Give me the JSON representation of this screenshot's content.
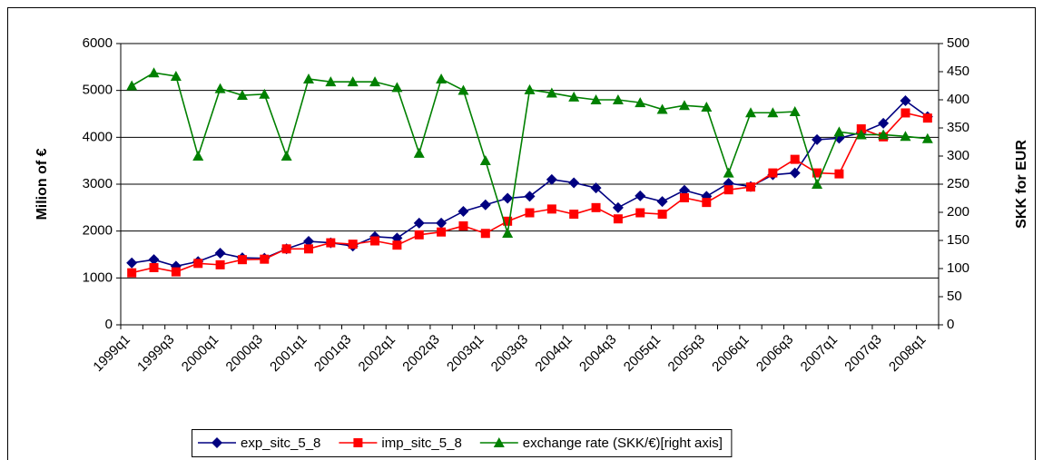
{
  "chart_data": {
    "type": "line",
    "y_label": "Milion of €",
    "y2_label": "SKK for EUR",
    "categories": [
      "1999q1",
      null,
      "1999q3",
      null,
      "2000q1",
      null,
      "2000q3",
      null,
      "2001q1",
      null,
      "2001q3",
      null,
      "2002q1",
      null,
      "2002q3",
      null,
      "2003q1",
      null,
      "2003q3",
      null,
      "2004q1",
      null,
      "2004q3",
      null,
      "2005q1",
      null,
      "2005q3",
      null,
      "2006q1",
      null,
      "2006q3",
      null,
      "2007q1",
      null,
      "2007q3",
      null,
      "2008q1"
    ],
    "ylim": [
      0,
      6000
    ],
    "yticks": [
      0,
      1000,
      2000,
      3000,
      4000,
      5000,
      6000
    ],
    "y2lim": [
      0,
      500
    ],
    "y2ticks": [
      0,
      50,
      100,
      150,
      200,
      250,
      300,
      350,
      400,
      450,
      500
    ],
    "grid": true,
    "legend": "bottom",
    "series": [
      {
        "name": "exp_sitc_5_8",
        "color": "#000080",
        "marker": "diamond",
        "values": [
          1320,
          1390,
          1250,
          1350,
          1530,
          1430,
          1420,
          1620,
          1780,
          1750,
          1680,
          1880,
          1850,
          2170,
          2170,
          2420,
          2560,
          2700,
          2740,
          3100,
          3030,
          2920,
          2500,
          2750,
          2630,
          2870,
          2740,
          3020,
          2950,
          3200,
          3240,
          3950,
          3980,
          4100,
          4300,
          4780,
          4440
        ]
      },
      {
        "name": "imp_sitc_5_8",
        "color": "#ff0000",
        "marker": "square",
        "values": [
          1110,
          1220,
          1130,
          1310,
          1280,
          1390,
          1400,
          1620,
          1620,
          1750,
          1720,
          1790,
          1700,
          1920,
          1980,
          2110,
          1950,
          2210,
          2390,
          2470,
          2360,
          2500,
          2260,
          2390,
          2360,
          2710,
          2610,
          2880,
          2940,
          3240,
          3530,
          3240,
          3220,
          4180,
          4010,
          4520,
          4410
        ]
      },
      {
        "name": "exchange rate (SKK/€)[right axis]",
        "color": "#008000",
        "marker": "triangle",
        "axis": "y2",
        "values": [
          425,
          448,
          442,
          300,
          420,
          408,
          410,
          300,
          437,
          432,
          432,
          432,
          422,
          305,
          437,
          417,
          292,
          163,
          418,
          412,
          405,
          400,
          400,
          395,
          383,
          390,
          387,
          270,
          377,
          377,
          379,
          250,
          343,
          338,
          338,
          335,
          331
        ]
      }
    ]
  }
}
